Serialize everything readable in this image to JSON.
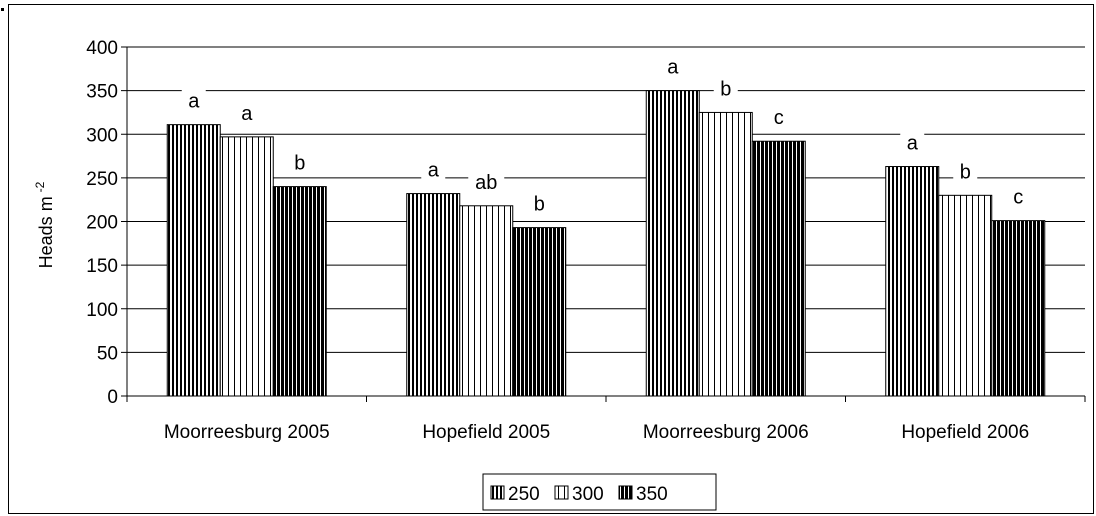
{
  "chart_data": {
    "type": "bar",
    "categories": [
      "Moorreesburg 2005",
      "Hopefield 2005",
      "Moorreesburg 2006",
      "Hopefield 2006"
    ],
    "series": [
      {
        "name": "250",
        "values": [
          311,
          232,
          350,
          263
        ],
        "letters": [
          "a",
          "a",
          "a",
          "a"
        ]
      },
      {
        "name": "300",
        "values": [
          297,
          218,
          325,
          230
        ],
        "letters": [
          "a",
          "ab",
          "b",
          "b"
        ]
      },
      {
        "name": "350",
        "values": [
          240,
          193,
          292,
          201
        ],
        "letters": [
          "b",
          "b",
          "c",
          "c"
        ]
      }
    ],
    "ylabel": "Heads m",
    "ylabel_superscript": "-2",
    "ylim": [
      0,
      400
    ],
    "yticks": [
      0,
      50,
      100,
      150,
      200,
      250,
      300,
      350,
      400
    ],
    "grid": true,
    "legend_position": "bottom-center"
  }
}
